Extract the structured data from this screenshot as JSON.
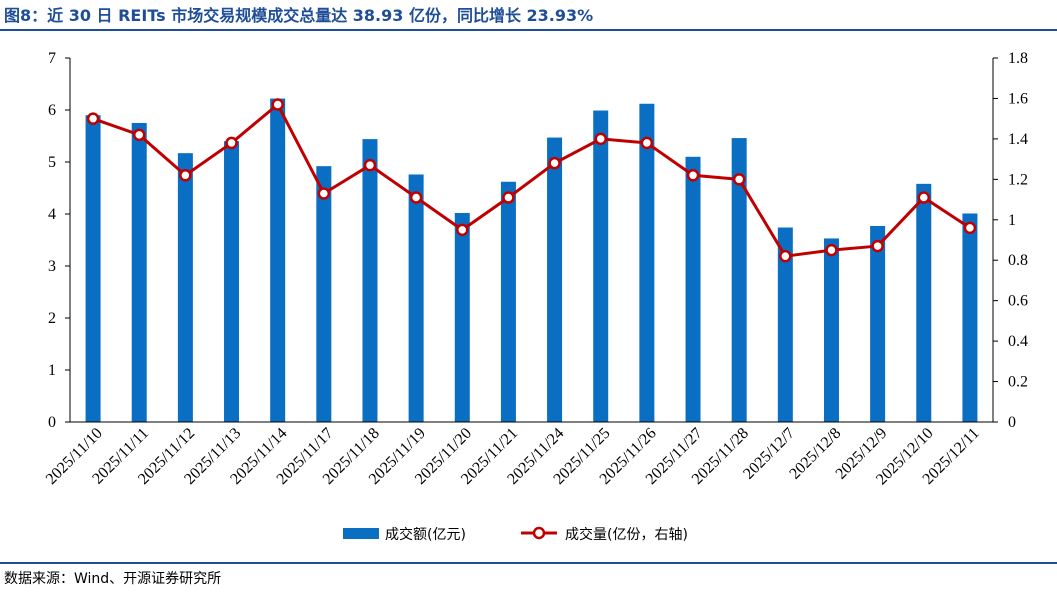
{
  "figure": {
    "title": "图8：近 30 日 REITs 市场交易规模成交总量达 38.93 亿份，同比增长 23.93%",
    "source": "数据来源：Wind、开源证券研究所"
  },
  "colors": {
    "bar": "#0a6fc2",
    "line": "#c00000",
    "marker_fill": "#ffffff",
    "title": "#1f4e96"
  },
  "chart_data": {
    "type": "bar",
    "categories": [
      "2025/11/10",
      "2025/11/11",
      "2025/11/12",
      "2025/11/13",
      "2025/11/14",
      "2025/11/17",
      "2025/11/18",
      "2025/11/19",
      "2025/11/20",
      "2025/11/21",
      "2025/11/24",
      "2025/11/25",
      "2025/11/26",
      "2025/11/27",
      "2025/11/28",
      "2025/12/7",
      "2025/12/8",
      "2025/12/9",
      "2025/12/10",
      "2025/12/11"
    ],
    "series": [
      {
        "name": "成交额(亿元)",
        "type": "bar",
        "axis": "left",
        "values": [
          5.9,
          5.75,
          5.17,
          5.4,
          6.22,
          4.92,
          5.44,
          4.76,
          4.02,
          4.62,
          5.47,
          5.99,
          6.12,
          5.1,
          5.46,
          3.74,
          3.53,
          3.77,
          4.58,
          4.01
        ]
      },
      {
        "name": "成交量(亿份，右轴)",
        "type": "line",
        "axis": "right",
        "values": [
          1.5,
          1.42,
          1.22,
          1.38,
          1.57,
          1.13,
          1.27,
          1.11,
          0.95,
          1.11,
          1.28,
          1.4,
          1.38,
          1.22,
          1.2,
          0.82,
          0.85,
          0.87,
          1.11,
          0.96
        ]
      }
    ],
    "ylim_left": [
      0,
      7
    ],
    "yticks_left": [
      0,
      1,
      2,
      3,
      4,
      5,
      6,
      7
    ],
    "ylim_right": [
      0,
      1.8
    ],
    "yticks_right": [
      0,
      0.2,
      0.4,
      0.6,
      0.8,
      1,
      1.2,
      1.4,
      1.6,
      1.8
    ],
    "grid": false,
    "legend_position": "bottom"
  }
}
